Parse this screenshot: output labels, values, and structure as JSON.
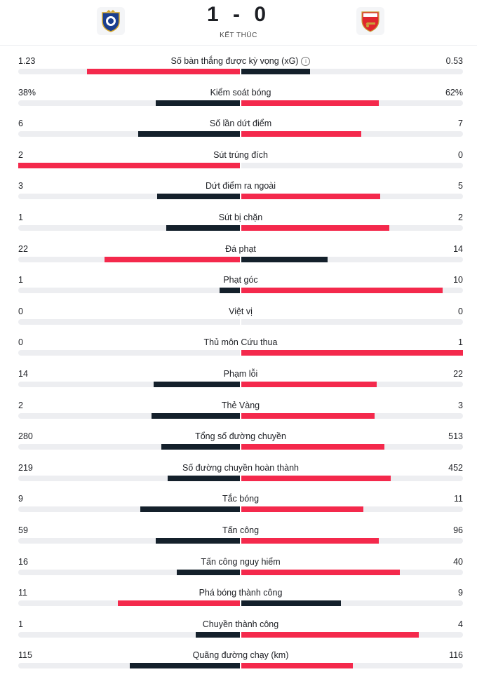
{
  "match": {
    "score": "1 - 0",
    "status": "KẾT THÚC",
    "home_crest_icon": "fc-porto-crest-icon",
    "away_crest_icon": "arsenal-crest-icon"
  },
  "colors": {
    "red": "#f4294c",
    "dark": "#14202b",
    "track": "#edeef1"
  },
  "stats": [
    {
      "label": "Số bàn thắng được kỳ vọng (xG)",
      "home": "1.23",
      "away": "0.53",
      "home_share": 0.69,
      "away_share": 0.31,
      "home_color": "red",
      "away_color": "dark",
      "info": true
    },
    {
      "label": "Kiểm soát bóng",
      "home": "38%",
      "away": "62%",
      "home_share": 0.38,
      "away_share": 0.62,
      "home_color": "dark",
      "away_color": "red"
    },
    {
      "label": "Số lần dứt điểm",
      "home": "6",
      "away": "7",
      "home_share": 0.46,
      "away_share": 0.54,
      "home_color": "dark",
      "away_color": "red"
    },
    {
      "label": "Sút trúng đích",
      "home": "2",
      "away": "0",
      "home_share": 1.0,
      "away_share": 0.0,
      "home_color": "red",
      "away_color": "dark"
    },
    {
      "label": "Dứt điểm ra ngoài",
      "home": "3",
      "away": "5",
      "home_share": 0.375,
      "away_share": 0.625,
      "home_color": "dark",
      "away_color": "red"
    },
    {
      "label": "Sút bị chặn",
      "home": "1",
      "away": "2",
      "home_share": 0.333,
      "away_share": 0.667,
      "home_color": "dark",
      "away_color": "red"
    },
    {
      "label": "Đá phạt",
      "home": "22",
      "away": "14",
      "home_share": 0.611,
      "away_share": 0.389,
      "home_color": "red",
      "away_color": "dark"
    },
    {
      "label": "Phạt góc",
      "home": "1",
      "away": "10",
      "home_share": 0.091,
      "away_share": 0.909,
      "home_color": "dark",
      "away_color": "red"
    },
    {
      "label": "Việt vị",
      "home": "0",
      "away": "0",
      "home_share": 0.0,
      "away_share": 0.0,
      "home_color": "dark",
      "away_color": "red"
    },
    {
      "label": "Thủ môn Cứu thua",
      "home": "0",
      "away": "1",
      "home_share": 0.0,
      "away_share": 1.0,
      "home_color": "dark",
      "away_color": "red"
    },
    {
      "label": "Phạm lỗi",
      "home": "14",
      "away": "22",
      "home_share": 0.389,
      "away_share": 0.611,
      "home_color": "dark",
      "away_color": "red"
    },
    {
      "label": "Thẻ Vàng",
      "home": "2",
      "away": "3",
      "home_share": 0.4,
      "away_share": 0.6,
      "home_color": "dark",
      "away_color": "red"
    },
    {
      "label": "Tổng số đường chuyền",
      "home": "280",
      "away": "513",
      "home_share": 0.353,
      "away_share": 0.647,
      "home_color": "dark",
      "away_color": "red"
    },
    {
      "label": "Số đường chuyền hoàn thành",
      "home": "219",
      "away": "452",
      "home_share": 0.326,
      "away_share": 0.674,
      "home_color": "dark",
      "away_color": "red"
    },
    {
      "label": "Tắc bóng",
      "home": "9",
      "away": "11",
      "home_share": 0.45,
      "away_share": 0.55,
      "home_color": "dark",
      "away_color": "red"
    },
    {
      "label": "Tấn công",
      "home": "59",
      "away": "96",
      "home_share": 0.381,
      "away_share": 0.619,
      "home_color": "dark",
      "away_color": "red"
    },
    {
      "label": "Tấn công nguy hiểm",
      "home": "16",
      "away": "40",
      "home_share": 0.286,
      "away_share": 0.714,
      "home_color": "dark",
      "away_color": "red"
    },
    {
      "label": "Phá bóng thành công",
      "home": "11",
      "away": "9",
      "home_share": 0.55,
      "away_share": 0.45,
      "home_color": "red",
      "away_color": "dark"
    },
    {
      "label": "Chuyền thành công",
      "home": "1",
      "away": "4",
      "home_share": 0.2,
      "away_share": 0.8,
      "home_color": "dark",
      "away_color": "red"
    },
    {
      "label": "Quãng đường chạy (km)",
      "home": "115",
      "away": "116",
      "home_share": 0.498,
      "away_share": 0.502,
      "home_color": "dark",
      "away_color": "red"
    }
  ]
}
